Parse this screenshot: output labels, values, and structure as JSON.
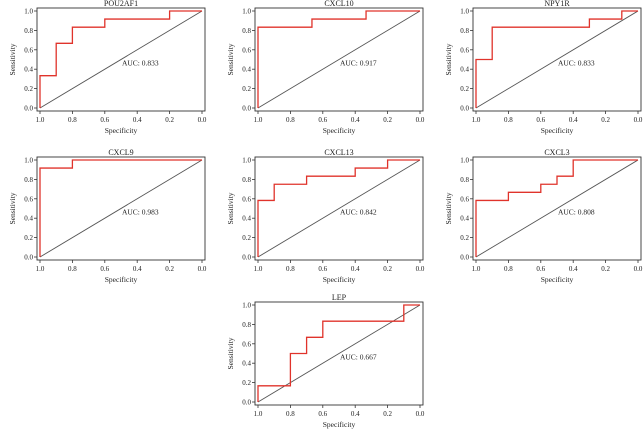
{
  "colors": {
    "roc": "#e0332b",
    "diagonal": "#555555",
    "axis": "#333333"
  },
  "chart_data": [
    {
      "type": "line",
      "title": "POU2AF1",
      "xlabel": "Specificity",
      "ylabel": "Sensitivity",
      "annotation": "AUC: 0.833",
      "xlim": [
        1.0,
        0.0
      ],
      "ylim": [
        0.0,
        1.0
      ],
      "xticks": [
        "1.0",
        "0.8",
        "0.6",
        "0.4",
        "0.2",
        "0.0"
      ],
      "yticks": [
        "0.0",
        "0.2",
        "0.4",
        "0.6",
        "0.8",
        "1.0"
      ],
      "series": [
        {
          "x": [
            1.0,
            1.0,
            0.9,
            0.9,
            0.8,
            0.8,
            0.6,
            0.6,
            0.2,
            0.2,
            0.0
          ],
          "y": [
            0.0,
            0.333,
            0.333,
            0.667,
            0.667,
            0.833,
            0.833,
            0.917,
            0.917,
            1.0,
            1.0
          ]
        }
      ]
    },
    {
      "type": "line",
      "title": "CXCL10",
      "xlabel": "Specificity",
      "ylabel": "Sensitivity",
      "annotation": "AUC: 0.917",
      "xlim": [
        1.0,
        0.0
      ],
      "ylim": [
        0.0,
        1.0
      ],
      "xticks": [
        "1.0",
        "0.8",
        "0.6",
        "0.4",
        "0.2",
        "0.0"
      ],
      "yticks": [
        "0.0",
        "0.2",
        "0.4",
        "0.6",
        "0.8",
        "1.0"
      ],
      "series": [
        {
          "x": [
            1.0,
            1.0,
            0.667,
            0.667,
            0.333,
            0.333,
            0.0
          ],
          "y": [
            0.0,
            0.833,
            0.833,
            0.917,
            0.917,
            1.0,
            1.0
          ]
        }
      ]
    },
    {
      "type": "line",
      "title": "NPY1R",
      "xlabel": "Specificity",
      "ylabel": "Sensitivity",
      "annotation": "AUC: 0.833",
      "xlim": [
        1.0,
        0.0
      ],
      "ylim": [
        0.0,
        1.0
      ],
      "xticks": [
        "1.0",
        "0.8",
        "0.6",
        "0.4",
        "0.2",
        "0.0"
      ],
      "yticks": [
        "0.0",
        "0.2",
        "0.4",
        "0.6",
        "0.8",
        "1.0"
      ],
      "series": [
        {
          "x": [
            1.0,
            1.0,
            0.9,
            0.9,
            0.3,
            0.3,
            0.1,
            0.1,
            0.0
          ],
          "y": [
            0.0,
            0.5,
            0.5,
            0.833,
            0.833,
            0.917,
            0.917,
            1.0,
            1.0
          ]
        }
      ]
    },
    {
      "type": "line",
      "title": "CXCL9",
      "xlabel": "Specificity",
      "ylabel": "Sensitivity",
      "annotation": "AUC: 0.983",
      "xlim": [
        1.0,
        0.0
      ],
      "ylim": [
        0.0,
        1.0
      ],
      "xticks": [
        "1.0",
        "0.8",
        "0.6",
        "0.4",
        "0.2",
        "0.0"
      ],
      "yticks": [
        "0.0",
        "0.2",
        "0.4",
        "0.6",
        "0.8",
        "1.0"
      ],
      "series": [
        {
          "x": [
            1.0,
            1.0,
            0.8,
            0.8,
            0.0
          ],
          "y": [
            0.0,
            0.917,
            0.917,
            1.0,
            1.0
          ]
        }
      ]
    },
    {
      "type": "line",
      "title": "CXCL13",
      "xlabel": "Specificity",
      "ylabel": "Sensitivity",
      "annotation": "AUC: 0.842",
      "xlim": [
        1.0,
        0.0
      ],
      "ylim": [
        0.0,
        1.0
      ],
      "xticks": [
        "1.0",
        "0.8",
        "0.6",
        "0.4",
        "0.2",
        "0.0"
      ],
      "yticks": [
        "0.0",
        "0.2",
        "0.4",
        "0.6",
        "0.8",
        "1.0"
      ],
      "series": [
        {
          "x": [
            1.0,
            1.0,
            0.9,
            0.9,
            0.7,
            0.7,
            0.4,
            0.4,
            0.2,
            0.2,
            0.0
          ],
          "y": [
            0.0,
            0.583,
            0.583,
            0.75,
            0.75,
            0.833,
            0.833,
            0.917,
            0.917,
            1.0,
            1.0
          ]
        }
      ]
    },
    {
      "type": "line",
      "title": "CXCL3",
      "xlabel": "Specificity",
      "ylabel": "Sensitivity",
      "annotation": "AUC: 0.808",
      "xlim": [
        1.0,
        0.0
      ],
      "ylim": [
        0.0,
        1.0
      ],
      "xticks": [
        "1.0",
        "0.8",
        "0.6",
        "0.4",
        "0.2",
        "0.0"
      ],
      "yticks": [
        "0.0",
        "0.2",
        "0.4",
        "0.6",
        "0.8",
        "1.0"
      ],
      "series": [
        {
          "x": [
            1.0,
            1.0,
            0.8,
            0.8,
            0.6,
            0.6,
            0.5,
            0.5,
            0.4,
            0.4,
            0.0
          ],
          "y": [
            0.0,
            0.583,
            0.583,
            0.667,
            0.667,
            0.75,
            0.75,
            0.833,
            0.833,
            1.0,
            1.0
          ]
        }
      ]
    },
    {
      "type": "line",
      "title": "LEP",
      "xlabel": "Specificity",
      "ylabel": "Sensitivity",
      "annotation": "AUC: 0.667",
      "xlim": [
        1.0,
        0.0
      ],
      "ylim": [
        0.0,
        1.0
      ],
      "xticks": [
        "1.0",
        "0.8",
        "0.6",
        "0.4",
        "0.2",
        "0.0"
      ],
      "yticks": [
        "0.0",
        "0.2",
        "0.4",
        "0.6",
        "0.8",
        "1.0"
      ],
      "series": [
        {
          "x": [
            1.0,
            1.0,
            0.8,
            0.8,
            0.7,
            0.7,
            0.6,
            0.6,
            0.1,
            0.1,
            0.0
          ],
          "y": [
            0.0,
            0.167,
            0.167,
            0.5,
            0.5,
            0.667,
            0.667,
            0.833,
            0.833,
            1.0,
            1.0
          ]
        }
      ]
    }
  ]
}
